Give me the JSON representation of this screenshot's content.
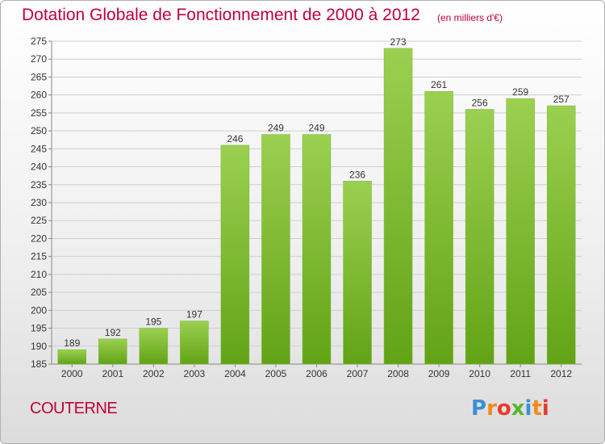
{
  "header": {
    "title": "Dotation Globale de Fonctionnement de 2000 à 2012",
    "unit": "(en milliers d'€)"
  },
  "footer": {
    "commune": "COUTERNE",
    "logo_letters": [
      "P",
      "r",
      "o",
      "x",
      "i",
      "t",
      "i"
    ],
    "logo_colors": [
      "#3b8fd8",
      "#f08a1c",
      "#e63b2e",
      "#5bb52e",
      "#3b8fd8",
      "#f08a1c",
      "#e63b2e"
    ]
  },
  "chart_data": {
    "type": "bar",
    "categories": [
      "2000",
      "2001",
      "2002",
      "2003",
      "2004",
      "2005",
      "2006",
      "2007",
      "2008",
      "2009",
      "2010",
      "2011",
      "2012"
    ],
    "values": [
      189,
      192,
      195,
      197,
      246,
      249,
      249,
      236,
      273,
      261,
      256,
      259,
      257
    ],
    "data_labels": [
      "189",
      "192",
      "195",
      "197",
      "246",
      "249",
      "249",
      "236",
      "273",
      "261",
      "256",
      "259",
      "257"
    ],
    "ylim": [
      185,
      275
    ],
    "yticks": [
      "185",
      "190",
      "195",
      "200",
      "205",
      "210",
      "215",
      "220",
      "225",
      "230",
      "235",
      "240",
      "245",
      "250",
      "255",
      "260",
      "265",
      "270",
      "275"
    ],
    "grid": true,
    "colors": {
      "bar_top": "#9bd050",
      "bar_bottom": "#62a316",
      "axis": "#888888",
      "grid": "#cfcfcf",
      "text": "#333333"
    }
  }
}
